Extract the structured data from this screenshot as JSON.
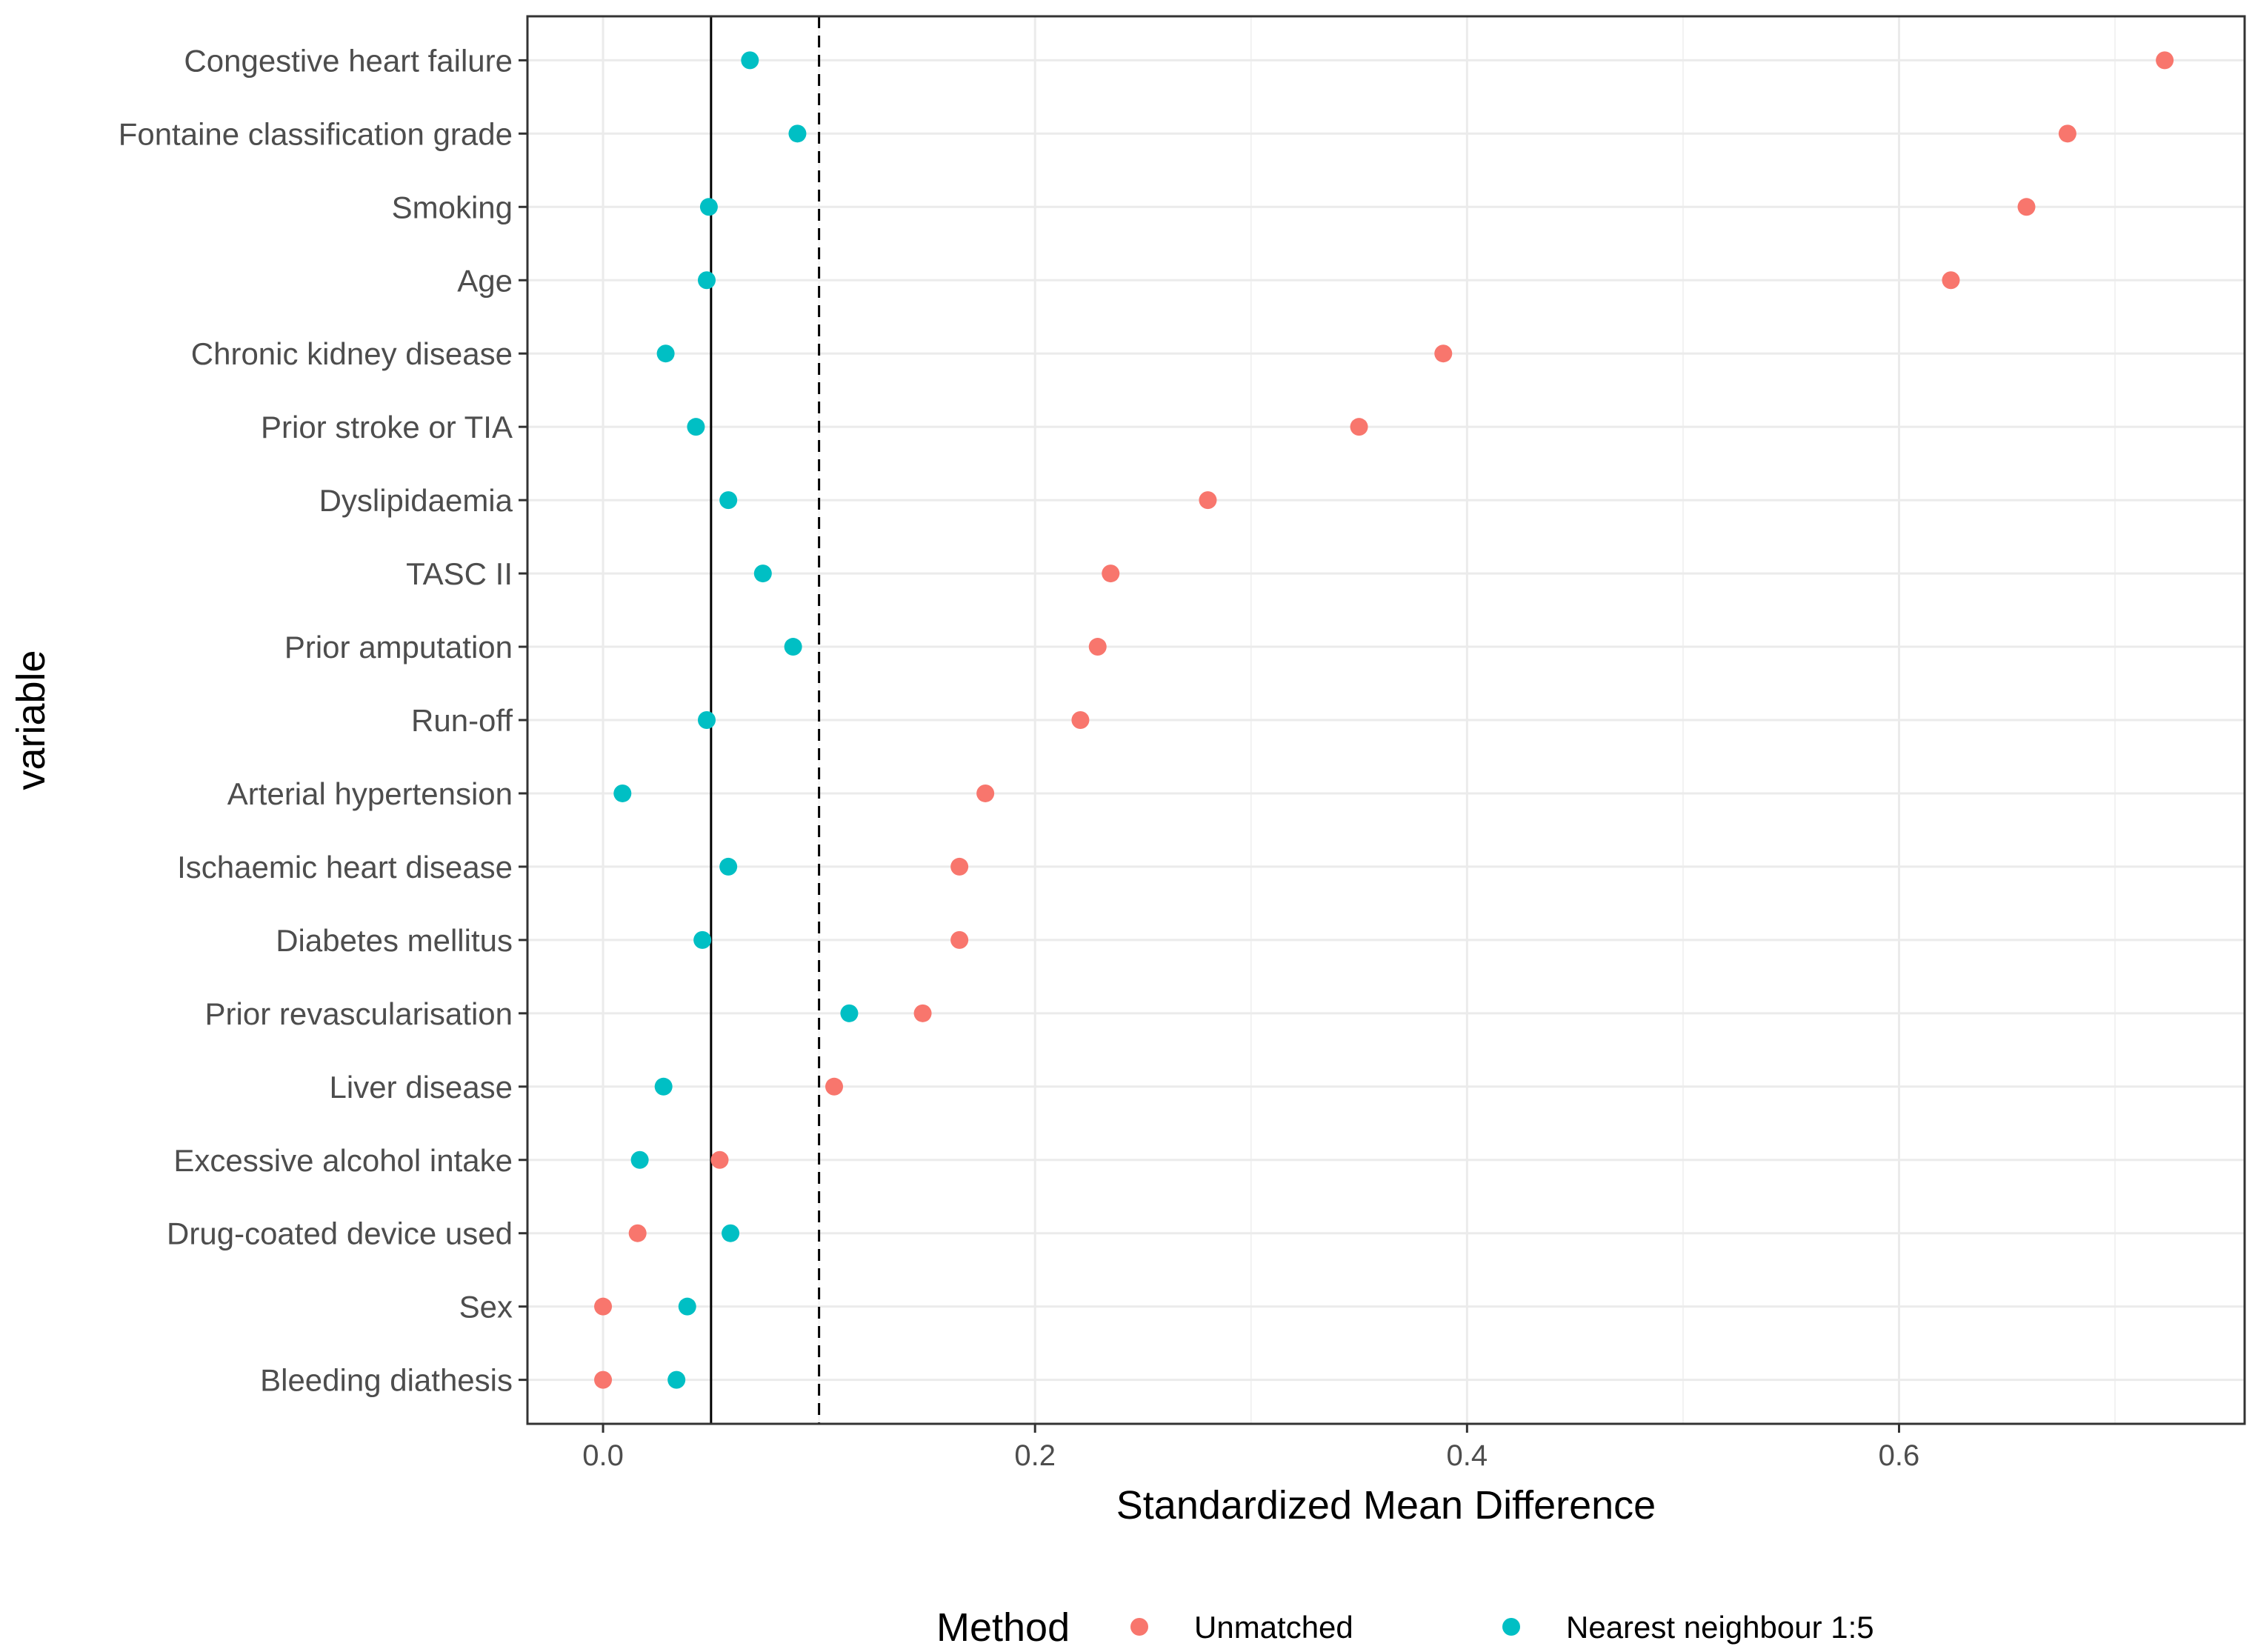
{
  "chart_data": {
    "type": "scatter",
    "title": "",
    "xlabel": "Standardized Mean Difference",
    "ylabel": "variable",
    "xlim": [
      -0.035,
      0.76
    ],
    "xticks": [
      0.0,
      0.2,
      0.4,
      0.6
    ],
    "xtick_labels": [
      "0.0",
      "0.2",
      "0.4",
      "0.6"
    ],
    "grid": true,
    "reference_lines": [
      {
        "name": "solid",
        "x": 0.05,
        "style": "solid"
      },
      {
        "name": "dashed",
        "x": 0.1,
        "style": "dashed"
      }
    ],
    "categories": [
      "Congestive heart failure",
      "Fontaine classification grade",
      "Smoking",
      "Age",
      "Chronic kidney disease",
      "Prior stroke or TIA",
      "Dyslipidaemia",
      "TASC II",
      "Prior amputation",
      "Run-off",
      "Arterial hypertension",
      "Ischaemic heart disease",
      "Diabetes mellitus",
      "Prior revascularisation",
      "Liver disease",
      "Excessive alcohol intake",
      "Drug-coated device used",
      "Sex",
      "Bleeding diathesis"
    ],
    "series": [
      {
        "name": "Unmatched",
        "color": "#F8766D",
        "values": [
          0.723,
          0.678,
          0.659,
          0.624,
          0.389,
          0.35,
          0.28,
          0.235,
          0.229,
          0.221,
          0.177,
          0.165,
          0.165,
          0.148,
          0.107,
          0.054,
          0.016,
          0.0,
          0.0
        ]
      },
      {
        "name": "Nearest neighbour 1:5",
        "color": "#00BFC4",
        "values": [
          0.068,
          0.09,
          0.049,
          0.048,
          0.029,
          0.043,
          0.058,
          0.074,
          0.088,
          0.048,
          0.009,
          0.058,
          0.046,
          0.114,
          0.028,
          0.017,
          0.059,
          0.039,
          0.034
        ]
      }
    ],
    "legend": {
      "title": "Method",
      "position": "bottom"
    }
  }
}
